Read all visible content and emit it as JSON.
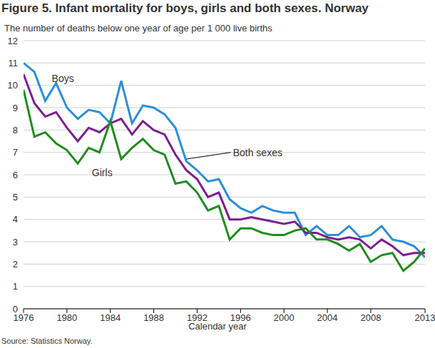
{
  "chart_data": {
    "type": "line",
    "title": "Figure 5. Infant mortality for boys, girls and both sexes. Norway",
    "subtitle": "The number of deaths below one year of age per 1 000 live births",
    "x_label": "Calendar year",
    "source": "Source: Statistics Norway.",
    "x": [
      1976,
      1977,
      1978,
      1979,
      1980,
      1981,
      1982,
      1983,
      1984,
      1985,
      1986,
      1987,
      1988,
      1989,
      1990,
      1991,
      1992,
      1993,
      1994,
      1995,
      1996,
      1997,
      1998,
      1999,
      2000,
      2001,
      2002,
      2003,
      2004,
      2005,
      2006,
      2007,
      2008,
      2009,
      2010,
      2011,
      2012,
      2013
    ],
    "series": [
      {
        "name": "Boys",
        "color": "#2b8fd9",
        "values": [
          11.0,
          10.6,
          9.3,
          10.1,
          9.0,
          8.5,
          8.9,
          8.8,
          8.3,
          10.2,
          8.3,
          9.1,
          9.0,
          8.7,
          8.1,
          6.6,
          6.2,
          5.7,
          5.8,
          4.9,
          4.5,
          4.3,
          4.6,
          4.4,
          4.3,
          4.3,
          3.3,
          3.7,
          3.3,
          3.3,
          3.7,
          3.2,
          3.3,
          3.7,
          3.1,
          3.0,
          2.8,
          2.3
        ]
      },
      {
        "name": "Both sexes",
        "color": "#7c1f8f",
        "values": [
          10.5,
          9.2,
          8.6,
          8.8,
          8.1,
          7.5,
          8.1,
          7.9,
          8.3,
          8.5,
          7.8,
          8.4,
          8.0,
          7.8,
          6.9,
          6.2,
          5.8,
          5.0,
          5.2,
          4.0,
          4.0,
          4.1,
          4.0,
          3.9,
          3.8,
          3.9,
          3.4,
          3.4,
          3.2,
          3.1,
          3.2,
          3.1,
          2.7,
          3.1,
          2.8,
          2.4,
          2.5,
          2.5
        ]
      },
      {
        "name": "Girls",
        "color": "#1f8c1f",
        "values": [
          9.8,
          7.7,
          7.9,
          7.4,
          7.1,
          6.5,
          7.2,
          7.0,
          8.4,
          6.7,
          7.2,
          7.6,
          7.1,
          6.9,
          5.6,
          5.7,
          5.2,
          4.4,
          4.6,
          3.1,
          3.6,
          3.6,
          3.4,
          3.3,
          3.3,
          3.5,
          3.6,
          3.1,
          3.1,
          2.9,
          2.6,
          2.9,
          2.1,
          2.4,
          2.5,
          1.7,
          2.1,
          2.7
        ]
      }
    ],
    "xlim": [
      1976,
      2013
    ],
    "xticks": [
      1976,
      1980,
      1984,
      1988,
      1992,
      1996,
      2000,
      2004,
      2008,
      2013
    ],
    "ylim": [
      0,
      12
    ],
    "yticks": [
      0,
      1,
      2,
      3,
      4,
      5,
      6,
      7,
      8,
      9,
      10,
      11,
      12
    ],
    "grid": true
  }
}
